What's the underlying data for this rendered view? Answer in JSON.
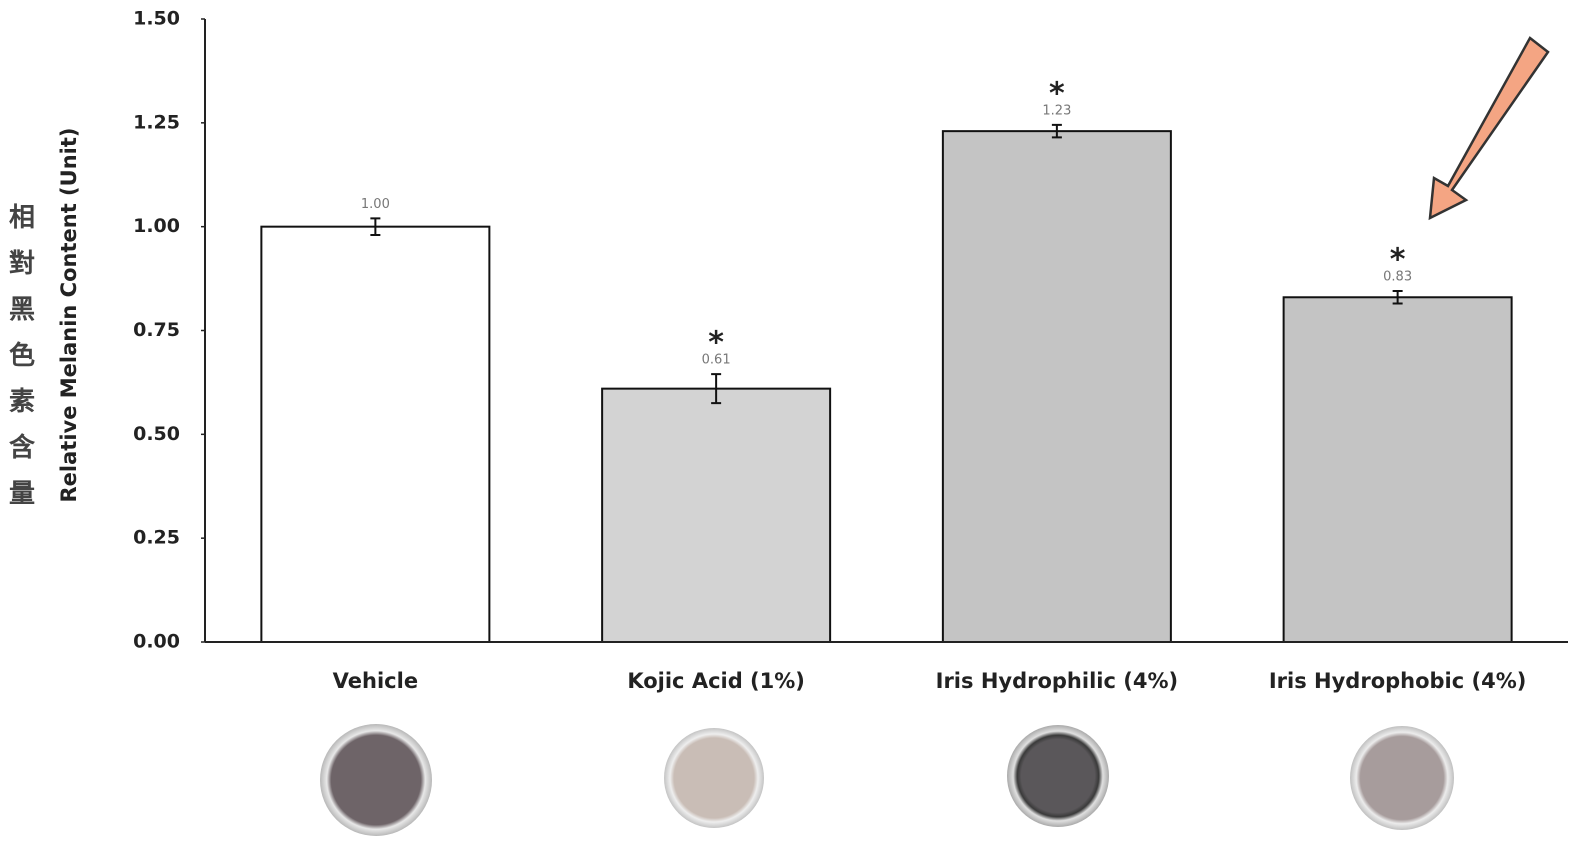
{
  "chart_data": {
    "type": "bar",
    "y_axis_label": "Relative Melanin Content (Unit)",
    "y_axis_label_zh": "相對黑色素含量",
    "categories": [
      "Vehicle",
      "Kojic Acid (1%)",
      "Iris Hydrophilic (4%)",
      "Iris Hydrophobic (4%)"
    ],
    "values": [
      1.0,
      0.61,
      1.23,
      0.83
    ],
    "value_labels": [
      "1.00",
      "0.61",
      "1.23",
      "0.83"
    ],
    "errors": [
      0.02,
      0.035,
      0.015,
      0.015
    ],
    "significance": [
      null,
      "*",
      "*",
      "*"
    ],
    "colors": [
      "#ffffff",
      "#d3d3d3",
      "#c4c4c4",
      "#c4c4c4"
    ],
    "ylim": [
      0,
      1.5
    ],
    "yticks": [
      {
        "value": 0,
        "label": "0.00"
      },
      {
        "value": 0.25,
        "label": "0.25"
      },
      {
        "value": 0.5,
        "label": "0.50"
      },
      {
        "value": 0.75,
        "label": "0.75"
      },
      {
        "value": 1.0,
        "label": "1.00"
      },
      {
        "value": 1.25,
        "label": "1.25"
      },
      {
        "value": 1.5,
        "label": "1.50"
      }
    ],
    "grid": false
  }
}
